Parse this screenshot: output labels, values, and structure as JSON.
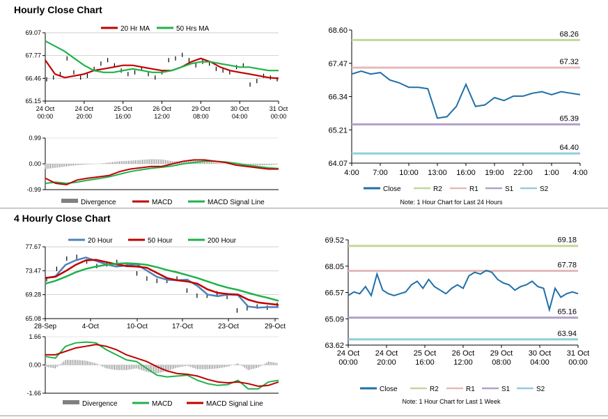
{
  "section1": {
    "title": "Hourly Close Chart"
  },
  "section2": {
    "title": "4 Hourly Close Chart"
  },
  "colors": {
    "red": "#c00000",
    "green": "#1fb24a",
    "blue": "#4f81bd",
    "line": "#1f6fa8",
    "gray": "#808080",
    "R2": "#c3d69b",
    "R1": "#e6b9b8",
    "S1": "#b1a0c7",
    "S2": "#92cddc"
  },
  "chart_data": [
    {
      "id": "hourly_price",
      "type": "line",
      "legend": [
        "20 Hr MA",
        "50 Hrs MA"
      ],
      "yticks": [
        "69.07",
        "67.77",
        "66.46",
        "65.15"
      ],
      "xticks": [
        [
          "24 Oct",
          "00:00"
        ],
        [
          "24 Oct",
          "20:00"
        ],
        [
          "25 Oct",
          "16:00"
        ],
        [
          "26 Oct",
          "12:00"
        ],
        [
          "29 Oct",
          "08:00"
        ],
        [
          "30 Oct",
          "04:00"
        ],
        [
          "31 Oct",
          "00:00"
        ]
      ],
      "ylim": [
        65.15,
        69.07
      ],
      "series": [
        {
          "name": "20 Hr MA",
          "values": [
            67.5,
            66.7,
            66.5,
            66.6,
            66.7,
            66.9,
            67.0,
            67.1,
            67.2,
            67.2,
            67.1,
            67.0,
            66.9,
            66.9,
            67.1,
            67.4,
            67.6,
            67.4,
            67.1,
            66.9,
            66.8,
            66.7,
            66.6,
            66.5,
            66.45
          ]
        },
        {
          "name": "50 Hrs MA",
          "values": [
            68.6,
            68.3,
            68.0,
            67.6,
            67.2,
            66.9,
            66.8,
            66.8,
            66.9,
            67.0,
            66.9,
            66.8,
            66.8,
            66.9,
            67.1,
            67.3,
            67.4,
            67.4,
            67.3,
            67.2,
            67.1,
            67.1,
            67.0,
            66.9,
            66.9
          ]
        },
        {
          "name": "Close",
          "values": [
            66.4,
            66.5,
            66.7,
            67.6,
            66.8,
            66.5,
            66.6,
            67.0,
            67.3,
            67.5,
            67.2,
            66.9,
            66.7,
            66.8,
            67.0,
            66.7,
            66.5,
            66.8,
            67.5,
            67.6,
            67.8,
            67.5,
            67.2,
            67.4,
            67.3,
            67.0,
            66.9,
            66.8,
            67.1,
            67.2,
            66.1,
            66.3,
            66.6,
            66.5,
            66.4
          ]
        }
      ]
    },
    {
      "id": "hourly_macd",
      "type": "line",
      "legend": [
        "Divergence",
        "MACD",
        "MACD Signal Line"
      ],
      "yticks": [
        "0.99",
        "0.00",
        "-0.99"
      ],
      "ylim": [
        -0.99,
        0.99
      ],
      "series": [
        {
          "name": "MACD",
          "values": [
            -0.55,
            -0.75,
            -0.8,
            -0.62,
            -0.55,
            -0.5,
            -0.45,
            -0.3,
            -0.2,
            -0.15,
            -0.1,
            -0.1,
            0.0,
            0.1,
            0.15,
            0.15,
            0.1,
            0.05,
            -0.05,
            -0.1,
            -0.15,
            -0.2,
            -0.2
          ]
        },
        {
          "name": "MACD Signal Line",
          "values": [
            -0.75,
            -0.7,
            -0.75,
            -0.7,
            -0.63,
            -0.57,
            -0.5,
            -0.4,
            -0.3,
            -0.23,
            -0.17,
            -0.13,
            -0.08,
            0.0,
            0.05,
            0.1,
            0.1,
            0.07,
            0.02,
            -0.05,
            -0.1,
            -0.15,
            -0.18
          ]
        },
        {
          "name": "Divergence",
          "values": [
            -0.2,
            -0.15,
            -0.1,
            -0.05,
            -0.02,
            0.0,
            0.05,
            0.1,
            0.12,
            0.15,
            0.18,
            0.17,
            0.1,
            0.1,
            0.12,
            0.1,
            0.05,
            0.0,
            -0.05,
            -0.07,
            -0.06,
            -0.05,
            -0.02
          ]
        }
      ]
    },
    {
      "id": "hourly_close_24h",
      "type": "line",
      "yticks": [
        "68.60",
        "67.47",
        "66.34",
        "65.21",
        "64.07"
      ],
      "xticks": [
        "4:00",
        "7:00",
        "10:00",
        "13:00",
        "16:00",
        "19:00",
        "22:00",
        "1:00",
        "4:00"
      ],
      "ylim": [
        64.07,
        68.6
      ],
      "levels": [
        {
          "name": "R2",
          "value": 68.26,
          "label": "68.26"
        },
        {
          "name": "R1",
          "value": 67.32,
          "label": "67.32"
        },
        {
          "name": "S1",
          "value": 65.39,
          "label": "65.39"
        },
        {
          "name": "S2",
          "value": 64.4,
          "label": "64.40"
        }
      ],
      "series": [
        {
          "name": "Close",
          "values": [
            67.1,
            67.2,
            67.1,
            67.15,
            66.9,
            66.8,
            66.65,
            66.65,
            66.6,
            65.6,
            65.65,
            66.0,
            66.75,
            66.0,
            66.05,
            66.3,
            66.2,
            66.35,
            66.35,
            66.45,
            66.5,
            66.4,
            66.5,
            66.45,
            66.4
          ]
        }
      ],
      "legend": [
        "Close",
        "R2",
        "R1",
        "S1",
        "S2"
      ],
      "note": "Note: 1 Hour Chart for Last 24 Hours"
    },
    {
      "id": "four_hourly_price",
      "type": "line",
      "legend": [
        "20 Hour",
        "50 Hour",
        "200 Hour"
      ],
      "yticks": [
        "77.67",
        "73.47",
        "69.28",
        "65.08"
      ],
      "xticks": [
        "28-Sep",
        "4-Oct",
        "10-Oct",
        "17-Oct",
        "23-Oct",
        "29-Oct"
      ],
      "ylim": [
        65.08,
        77.67
      ],
      "series": [
        {
          "name": "20 Hour",
          "values": [
            72.2,
            72.5,
            74.5,
            75.3,
            75.8,
            75.2,
            74.6,
            74.2,
            74.4,
            74.6,
            73.5,
            72.4,
            71.9,
            71.8,
            71.9,
            70.8,
            69.3,
            69.0,
            69.3,
            69.2,
            67.2,
            67.0,
            67.1,
            67.1
          ]
        },
        {
          "name": "50 Hour",
          "values": [
            72.2,
            72.4,
            73.4,
            74.5,
            75.3,
            75.4,
            75.0,
            74.6,
            74.3,
            74.2,
            74.0,
            73.1,
            72.2,
            71.8,
            71.6,
            71.2,
            70.2,
            69.6,
            69.4,
            69.3,
            68.4,
            67.9,
            67.7,
            67.5
          ]
        },
        {
          "name": "200 Hour",
          "values": [
            71.2,
            71.7,
            72.4,
            73.2,
            73.8,
            74.2,
            74.5,
            74.7,
            74.8,
            74.7,
            74.5,
            74.1,
            73.6,
            73.2,
            72.7,
            72.2,
            71.6,
            71.0,
            70.5,
            70.1,
            69.6,
            69.1,
            68.7,
            68.2
          ]
        },
        {
          "name": "Close",
          "values": [
            72.0,
            73.8,
            75.6,
            75.9,
            75.1,
            74.3,
            74.6,
            75.0,
            74.5,
            73.0,
            72.1,
            71.7,
            71.7,
            72.1,
            70.0,
            69.1,
            69.1,
            69.5,
            68.9,
            66.5,
            66.9,
            67.2,
            67.0,
            67.5
          ]
        }
      ]
    },
    {
      "id": "four_hourly_macd",
      "type": "line",
      "legend": [
        "Divergence",
        "MACD",
        "MACD Signal Line"
      ],
      "yticks": [
        "1.66",
        "0.00",
        "-1.66"
      ],
      "ylim": [
        -1.66,
        1.66
      ],
      "series": [
        {
          "name": "MACD",
          "values": [
            0.5,
            0.4,
            1.1,
            1.3,
            1.35,
            1.3,
            0.9,
            0.6,
            0.3,
            0.2,
            -0.2,
            -0.6,
            -0.7,
            -0.65,
            -0.6,
            -0.9,
            -1.1,
            -1.2,
            -1.15,
            -0.9,
            -1.4,
            -1.4,
            -1.0,
            -0.9
          ]
        },
        {
          "name": "MACD Signal Line",
          "values": [
            0.6,
            0.6,
            0.8,
            1.0,
            1.1,
            1.2,
            1.1,
            0.9,
            0.6,
            0.4,
            0.2,
            -0.1,
            -0.35,
            -0.5,
            -0.55,
            -0.65,
            -0.85,
            -1.0,
            -1.05,
            -1.0,
            -1.1,
            -1.25,
            -1.2,
            -1.0
          ]
        },
        {
          "name": "Divergence",
          "values": [
            -0.1,
            -0.2,
            0.3,
            0.3,
            0.25,
            0.1,
            -0.2,
            -0.3,
            -0.3,
            -0.2,
            -0.4,
            -0.5,
            -0.35,
            -0.15,
            -0.05,
            -0.25,
            -0.25,
            -0.2,
            -0.1,
            0.1,
            -0.3,
            -0.15,
            0.2,
            0.1
          ]
        }
      ]
    },
    {
      "id": "four_hourly_close_week",
      "type": "line",
      "yticks": [
        "69.52",
        "68.05",
        "66.57",
        "65.09",
        "63.62"
      ],
      "xticks": [
        [
          "24 Oct",
          "00:00"
        ],
        [
          "24 Oct",
          "20:00"
        ],
        [
          "25 Oct",
          "16:00"
        ],
        [
          "26 Oct",
          "12:00"
        ],
        [
          "29 Oct",
          "08:00"
        ],
        [
          "30 Oct",
          "04:00"
        ],
        [
          "31 Oct",
          "00:00"
        ]
      ],
      "ylim": [
        63.62,
        69.52
      ],
      "levels": [
        {
          "name": "R2",
          "value": 69.18,
          "label": "69.18"
        },
        {
          "name": "R1",
          "value": 67.78,
          "label": "67.78"
        },
        {
          "name": "S1",
          "value": 65.16,
          "label": "65.16"
        },
        {
          "name": "S2",
          "value": 63.94,
          "label": "63.94"
        }
      ],
      "series": [
        {
          "name": "Close",
          "values": [
            66.4,
            66.6,
            66.5,
            66.9,
            66.4,
            67.6,
            66.7,
            66.5,
            66.4,
            66.5,
            66.6,
            67.0,
            67.2,
            66.8,
            67.3,
            66.9,
            66.7,
            66.5,
            66.8,
            67.0,
            66.8,
            67.5,
            67.7,
            67.6,
            67.8,
            67.7,
            67.3,
            67.1,
            67.0,
            66.7,
            66.9,
            67.0,
            67.2,
            66.9,
            66.8,
            65.6,
            66.8,
            66.3,
            66.5,
            66.6,
            66.5
          ]
        }
      ],
      "legend": [
        "Close",
        "R2",
        "R1",
        "S1",
        "S2"
      ],
      "note": "Note: 1 Hour Chart for Last 1 Week"
    }
  ]
}
